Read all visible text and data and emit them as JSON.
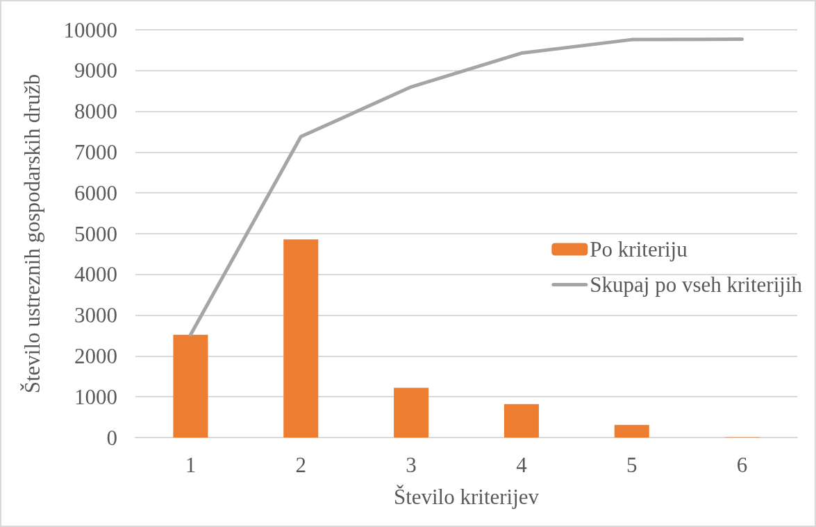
{
  "chart_data": {
    "type": "bar",
    "xlabel": "Število kriterijev",
    "ylabel": "Število ustreznih gospodarskih družb",
    "categories": [
      "1",
      "2",
      "3",
      "4",
      "5",
      "6"
    ],
    "series": [
      {
        "name": "Po kriteriju",
        "color": "#ed7d31",
        "values": [
          2520,
          4860,
          1220,
          820,
          310,
          10
        ]
      },
      {
        "name": "Skupaj po vseh kriterijih",
        "type": "line",
        "color": "#a5a5a5",
        "values": [
          2520,
          7380,
          8600,
          9430,
          9760,
          9770
        ]
      }
    ],
    "ylim": [
      0,
      10000
    ],
    "yticks": [
      0,
      1000,
      2000,
      3000,
      4000,
      5000,
      6000,
      7000,
      8000,
      9000,
      10000
    ],
    "grid": "y",
    "legend": "right",
    "marker": "none",
    "line_style": "solid"
  }
}
